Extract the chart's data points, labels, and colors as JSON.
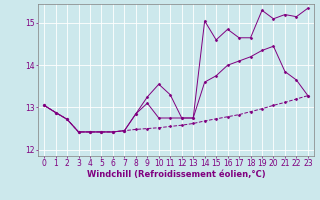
{
  "xlabel": "Windchill (Refroidissement éolien,°C)",
  "background_color": "#cce8ec",
  "line_color": "#800080",
  "grid_color": "#ffffff",
  "xlim": [
    -0.5,
    23.5
  ],
  "ylim": [
    11.85,
    15.45
  ],
  "yticks": [
    12,
    13,
    14,
    15
  ],
  "xticks": [
    0,
    1,
    2,
    3,
    4,
    5,
    6,
    7,
    8,
    9,
    10,
    11,
    12,
    13,
    14,
    15,
    16,
    17,
    18,
    19,
    20,
    21,
    22,
    23
  ],
  "series": [
    {
      "x": [
        0,
        1,
        2,
        3,
        4,
        5,
        6,
        7,
        8,
        9,
        10,
        11,
        12,
        13,
        14,
        15,
        16,
        17,
        18,
        19,
        20,
        21,
        22,
        23
      ],
      "y": [
        13.05,
        12.88,
        12.72,
        12.42,
        12.42,
        12.42,
        12.42,
        12.45,
        12.48,
        12.5,
        12.52,
        12.55,
        12.58,
        12.62,
        12.68,
        12.73,
        12.78,
        12.83,
        12.9,
        12.97,
        13.05,
        13.12,
        13.2,
        13.28
      ],
      "linestyle": "--"
    },
    {
      "x": [
        0,
        1,
        2,
        3,
        4,
        5,
        6,
        7,
        8,
        9,
        10,
        11,
        12,
        13,
        14,
        15,
        16,
        17,
        18,
        19,
        20,
        21,
        22,
        23
      ],
      "y": [
        13.05,
        12.88,
        12.72,
        12.42,
        12.42,
        12.42,
        12.42,
        12.45,
        12.85,
        13.1,
        12.75,
        12.75,
        12.75,
        12.75,
        13.6,
        13.75,
        14.0,
        14.1,
        14.2,
        14.35,
        14.45,
        13.85,
        13.65,
        13.28
      ],
      "linestyle": "-"
    },
    {
      "x": [
        0,
        1,
        2,
        3,
        4,
        5,
        6,
        7,
        8,
        9,
        10,
        11,
        12,
        13,
        14,
        15,
        16,
        17,
        18,
        19,
        20,
        21,
        22,
        23
      ],
      "y": [
        13.05,
        12.88,
        12.72,
        12.42,
        12.42,
        12.42,
        12.42,
        12.45,
        12.85,
        13.25,
        13.55,
        13.3,
        12.75,
        12.75,
        15.05,
        14.6,
        14.85,
        14.65,
        14.65,
        15.3,
        15.1,
        15.2,
        15.15,
        15.35
      ],
      "linestyle": "-"
    }
  ],
  "tick_fontsize": 5.5,
  "label_fontsize": 6.0
}
